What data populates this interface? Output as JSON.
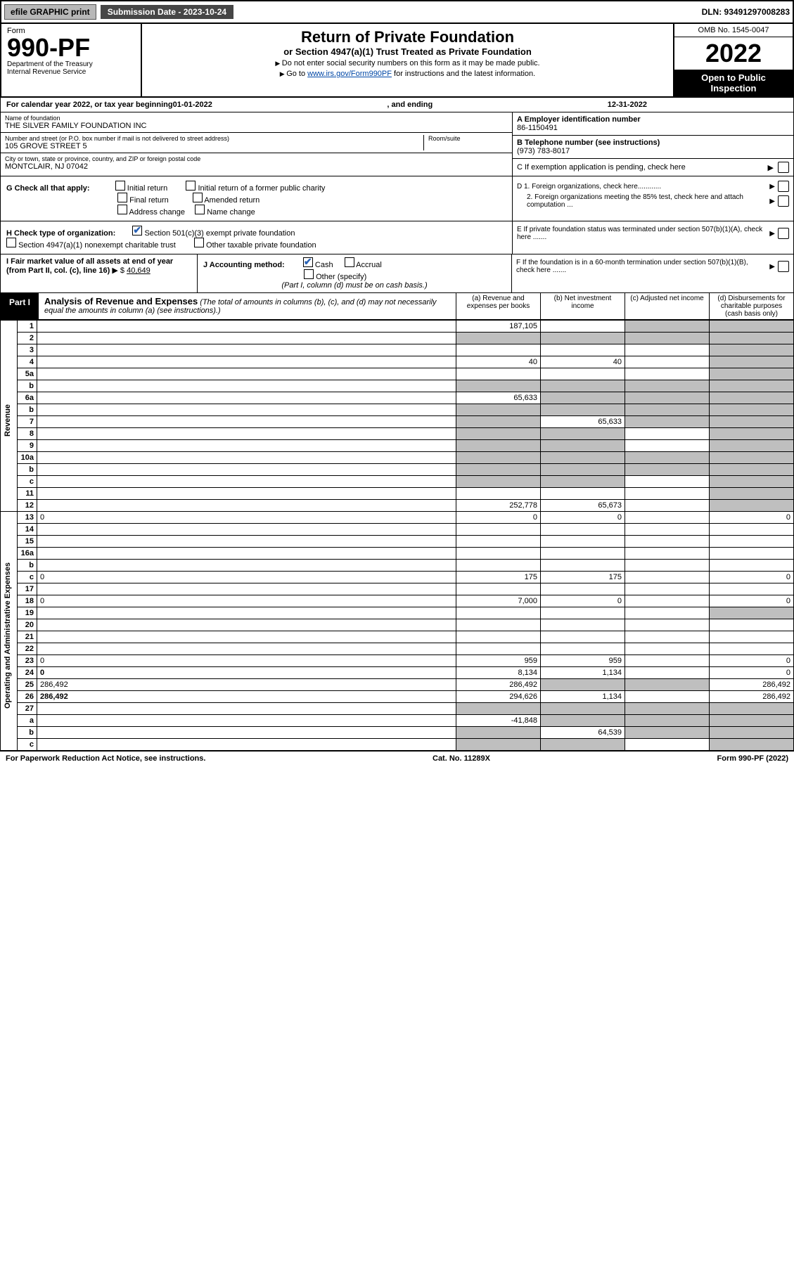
{
  "topbar": {
    "efile_label": "efile GRAPHIC print",
    "submission_label": "Submission Date - 2023-10-24",
    "dln": "DLN: 93491297008283"
  },
  "header": {
    "form_label": "Form",
    "form_number": "990-PF",
    "dept": "Department of the Treasury",
    "irs": "Internal Revenue Service",
    "title": "Return of Private Foundation",
    "subtitle": "or Section 4947(a)(1) Trust Treated as Private Foundation",
    "note1": "Do not enter social security numbers on this form as it may be made public.",
    "note2_pre": "Go to ",
    "note2_link": "www.irs.gov/Form990PF",
    "note2_post": " for instructions and the latest information.",
    "omb": "OMB No. 1545-0047",
    "year": "2022",
    "inspect1": "Open to Public",
    "inspect2": "Inspection"
  },
  "calrow": {
    "prefix": "For calendar year 2022, or tax year beginning ",
    "begin": "01-01-2022",
    "mid": ", and ending ",
    "end": "12-31-2022"
  },
  "entity": {
    "name_label": "Name of foundation",
    "name": "THE SILVER FAMILY FOUNDATION INC",
    "addr_label": "Number and street (or P.O. box number if mail is not delivered to street address)",
    "addr": "105 GROVE STREET 5",
    "room_label": "Room/suite",
    "room": "",
    "city_label": "City or town, state or province, country, and ZIP or foreign postal code",
    "city": "MONTCLAIR, NJ  07042",
    "a_label": "A Employer identification number",
    "a_val": "86-1150491",
    "b_label": "B Telephone number (see instructions)",
    "b_val": "(973) 783-8017",
    "c_label": "C If exemption application is pending, check here"
  },
  "checks": {
    "g_label": "G Check all that apply:",
    "g_opts": [
      "Initial return",
      "Initial return of a former public charity",
      "Final return",
      "Amended return",
      "Address change",
      "Name change"
    ],
    "h_label": "H Check type of organization:",
    "h_opts": [
      "Section 501(c)(3) exempt private foundation",
      "Section 4947(a)(1) nonexempt charitable trust",
      "Other taxable private foundation"
    ],
    "d1": "D 1. Foreign organizations, check here............",
    "d2": "2. Foreign organizations meeting the 85% test, check here and attach computation ...",
    "e": "E  If private foundation status was terminated under section 507(b)(1)(A), check here .......",
    "f": "F  If the foundation is in a 60-month termination under section 507(b)(1)(B), check here .......",
    "i_label": "I Fair market value of all assets at end of year (from Part II, col. (c), line 16)",
    "i_val": "40,649",
    "j_label": "J Accounting method:",
    "j_opts": [
      "Cash",
      "Accrual",
      "Other (specify)"
    ],
    "j_note": "(Part I, column (d) must be on cash basis.)"
  },
  "part1": {
    "tag": "Part I",
    "title": "Analysis of Revenue and Expenses",
    "note": "(The total of amounts in columns (b), (c), and (d) may not necessarily equal the amounts in column (a) (see instructions).)",
    "col_a": "(a)   Revenue and expenses per books",
    "col_b": "(b)   Net investment income",
    "col_c": "(c)   Adjusted net income",
    "col_d": "(d)   Disbursements for charitable purposes (cash basis only)"
  },
  "side_labels": {
    "rev": "Revenue",
    "exp": "Operating and Administrative Expenses"
  },
  "lines": [
    {
      "n": "1",
      "d": "",
      "a": "187,105",
      "b": "",
      "c": "",
      "bg": false,
      "cg": true,
      "dg": true
    },
    {
      "n": "2",
      "d": "",
      "a": "",
      "b": "",
      "c": "",
      "bg": true,
      "cg": true,
      "dg": true,
      "ag": true
    },
    {
      "n": "3",
      "d": "",
      "a": "",
      "b": "",
      "c": "",
      "bg": false,
      "cg": false,
      "dg": true
    },
    {
      "n": "4",
      "d": "",
      "a": "40",
      "b": "40",
      "c": "",
      "bg": false,
      "cg": false,
      "dg": true
    },
    {
      "n": "5a",
      "d": "",
      "a": "",
      "b": "",
      "c": "",
      "bg": false,
      "cg": false,
      "dg": true
    },
    {
      "n": "b",
      "d": "",
      "a": "",
      "b": "",
      "c": "",
      "bg": true,
      "cg": true,
      "dg": true,
      "ag": true,
      "inline": true
    },
    {
      "n": "6a",
      "d": "",
      "a": "65,633",
      "b": "",
      "c": "",
      "bg": true,
      "cg": true,
      "dg": true
    },
    {
      "n": "b",
      "d": "",
      "a": "",
      "b": "",
      "c": "",
      "bg": true,
      "cg": true,
      "dg": true,
      "ag": true
    },
    {
      "n": "7",
      "d": "",
      "a": "",
      "b": "65,633",
      "c": "",
      "bg": false,
      "cg": true,
      "dg": true,
      "ag": true
    },
    {
      "n": "8",
      "d": "",
      "a": "",
      "b": "",
      "c": "",
      "bg": true,
      "cg": false,
      "dg": true,
      "ag": true
    },
    {
      "n": "9",
      "d": "",
      "a": "",
      "b": "",
      "c": "",
      "bg": true,
      "cg": false,
      "dg": true,
      "ag": true
    },
    {
      "n": "10a",
      "d": "",
      "a": "",
      "b": "",
      "c": "",
      "bg": true,
      "cg": true,
      "dg": true,
      "ag": true,
      "inline": true
    },
    {
      "n": "b",
      "d": "",
      "a": "",
      "b": "",
      "c": "",
      "bg": true,
      "cg": true,
      "dg": true,
      "ag": true,
      "inline": true
    },
    {
      "n": "c",
      "d": "",
      "a": "",
      "b": "",
      "c": "",
      "bg": true,
      "cg": false,
      "dg": true,
      "ag": true
    },
    {
      "n": "11",
      "d": "",
      "a": "",
      "b": "",
      "c": "",
      "bg": false,
      "cg": false,
      "dg": true
    },
    {
      "n": "12",
      "d": "",
      "a": "252,778",
      "b": "65,673",
      "c": "",
      "bg": false,
      "cg": false,
      "dg": true,
      "bold": true
    },
    {
      "n": "13",
      "d": "0",
      "a": "0",
      "b": "0",
      "c": "",
      "bg": false,
      "cg": false,
      "dg": false,
      "exp": true
    },
    {
      "n": "14",
      "d": "",
      "a": "",
      "b": "",
      "c": "",
      "exp": true
    },
    {
      "n": "15",
      "d": "",
      "a": "",
      "b": "",
      "c": "",
      "exp": true
    },
    {
      "n": "16a",
      "d": "",
      "a": "",
      "b": "",
      "c": "",
      "exp": true
    },
    {
      "n": "b",
      "d": "",
      "a": "",
      "b": "",
      "c": "",
      "exp": true
    },
    {
      "n": "c",
      "d": "0",
      "a": "175",
      "b": "175",
      "c": "",
      "exp": true
    },
    {
      "n": "17",
      "d": "",
      "a": "",
      "b": "",
      "c": "",
      "exp": true
    },
    {
      "n": "18",
      "d": "0",
      "a": "7,000",
      "b": "0",
      "c": "",
      "exp": true
    },
    {
      "n": "19",
      "d": "",
      "a": "",
      "b": "",
      "c": "",
      "dg": true,
      "exp": true
    },
    {
      "n": "20",
      "d": "",
      "a": "",
      "b": "",
      "c": "",
      "exp": true
    },
    {
      "n": "21",
      "d": "",
      "a": "",
      "b": "",
      "c": "",
      "exp": true
    },
    {
      "n": "22",
      "d": "",
      "a": "",
      "b": "",
      "c": "",
      "exp": true
    },
    {
      "n": "23",
      "d": "0",
      "a": "959",
      "b": "959",
      "c": "",
      "exp": true
    },
    {
      "n": "24",
      "d": "0",
      "a": "8,134",
      "b": "1,134",
      "c": "",
      "bold": true,
      "exp": true
    },
    {
      "n": "25",
      "d": "286,492",
      "a": "286,492",
      "b": "",
      "c": "",
      "bg": true,
      "cg": true,
      "exp": true
    },
    {
      "n": "26",
      "d": "286,492",
      "a": "294,626",
      "b": "1,134",
      "c": "",
      "bold": true,
      "exp": true
    },
    {
      "n": "27",
      "d": "",
      "a": "",
      "b": "",
      "c": "",
      "bg": true,
      "cg": true,
      "dg": true,
      "ag": true
    },
    {
      "n": "a",
      "d": "",
      "a": "-41,848",
      "b": "",
      "c": "",
      "bg": true,
      "cg": true,
      "dg": true,
      "bold": true
    },
    {
      "n": "b",
      "d": "",
      "a": "",
      "b": "64,539",
      "c": "",
      "ag": true,
      "cg": true,
      "dg": true,
      "bold": true
    },
    {
      "n": "c",
      "d": "",
      "a": "",
      "b": "",
      "c": "",
      "ag": true,
      "bg": true,
      "dg": true,
      "bold": true
    }
  ],
  "footer": {
    "left": "For Paperwork Reduction Act Notice, see instructions.",
    "mid": "Cat. No. 11289X",
    "right": "Form 990-PF (2022)"
  }
}
